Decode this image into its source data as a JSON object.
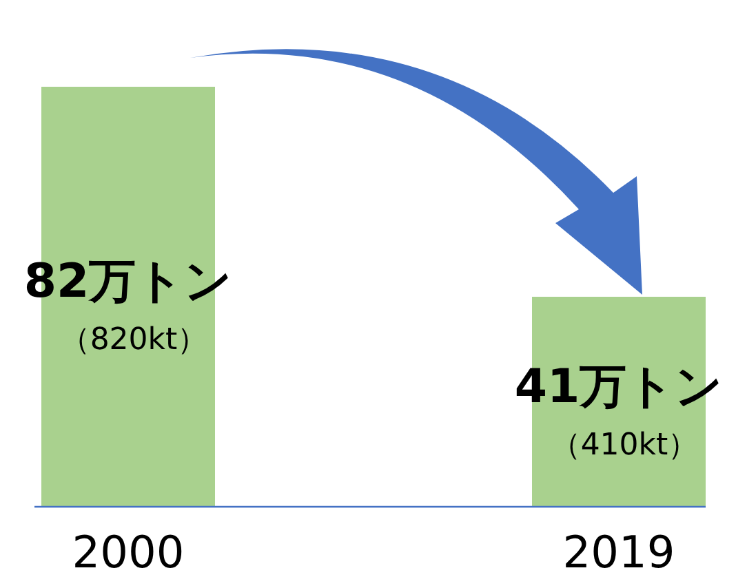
{
  "chart_data": {
    "type": "bar",
    "categories": [
      "2000",
      "2019"
    ],
    "values": [
      82,
      41
    ],
    "color": "#a9d18e",
    "value_labels": [
      "82万トン",
      "41万トン"
    ],
    "annotations": [
      "（820kt）",
      "（410kt）"
    ]
  }
}
